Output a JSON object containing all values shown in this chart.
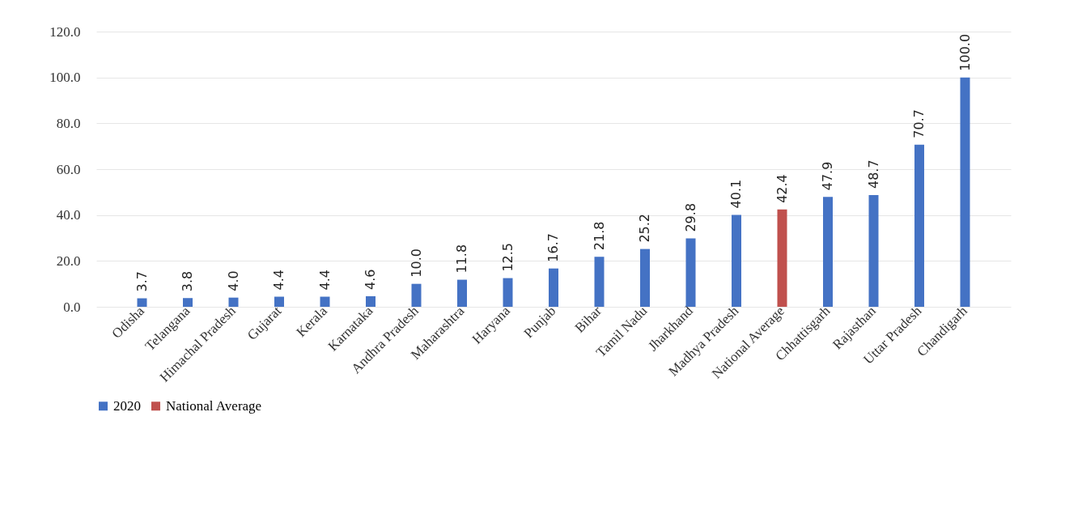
{
  "chart_data": {
    "type": "bar",
    "categories": [
      "Odisha",
      "Telangana",
      "Himachal Pradesh",
      "Gujarat",
      "Kerala",
      "Karnataka",
      "Andhra Pradesh",
      "Maharashtra",
      "Haryana",
      "Punjab",
      "Bihar",
      "Tamil Nadu",
      "Jharkhand",
      "Madhya Pradesh",
      "National Average",
      "Chhattisgarh",
      "Rajasthan",
      "Uttar Pradesh",
      "Chandigarh"
    ],
    "series": [
      {
        "name": "2020",
        "color": "#4472c4",
        "values": [
          3.7,
          3.8,
          4.0,
          4.4,
          4.4,
          4.6,
          10.0,
          11.8,
          12.5,
          16.7,
          21.8,
          25.2,
          29.8,
          40.1,
          null,
          47.9,
          48.7,
          70.7,
          100.0
        ],
        "value_labels": [
          "3.7",
          "3.8",
          "4.0",
          "4.4",
          "4.4",
          "4.6",
          "10.0",
          "11.8",
          "12.5",
          "16.7",
          "21.8",
          "25.2",
          "29.8",
          "40.1",
          null,
          "47.9",
          "48.7",
          "70.7",
          "100.0"
        ]
      },
      {
        "name": "National Average",
        "color": "#c0504d",
        "values": [
          null,
          null,
          null,
          null,
          null,
          null,
          null,
          null,
          null,
          null,
          null,
          null,
          null,
          null,
          42.4,
          null,
          null,
          null,
          null
        ],
        "value_labels": [
          null,
          null,
          null,
          null,
          null,
          null,
          null,
          null,
          null,
          null,
          null,
          null,
          null,
          null,
          "42.4",
          null,
          null,
          null,
          null
        ]
      }
    ],
    "ylim": [
      0,
      120
    ],
    "yticks": [
      {
        "value": 0,
        "label": "0.0"
      },
      {
        "value": 20,
        "label": "20.0"
      },
      {
        "value": 40,
        "label": "40.0"
      },
      {
        "value": 60,
        "label": "60.0"
      },
      {
        "value": 80,
        "label": "80.0"
      },
      {
        "value": 100,
        "label": "100.0"
      },
      {
        "value": 120,
        "label": "120.0"
      }
    ],
    "grid": "y",
    "legend": "bottom"
  }
}
